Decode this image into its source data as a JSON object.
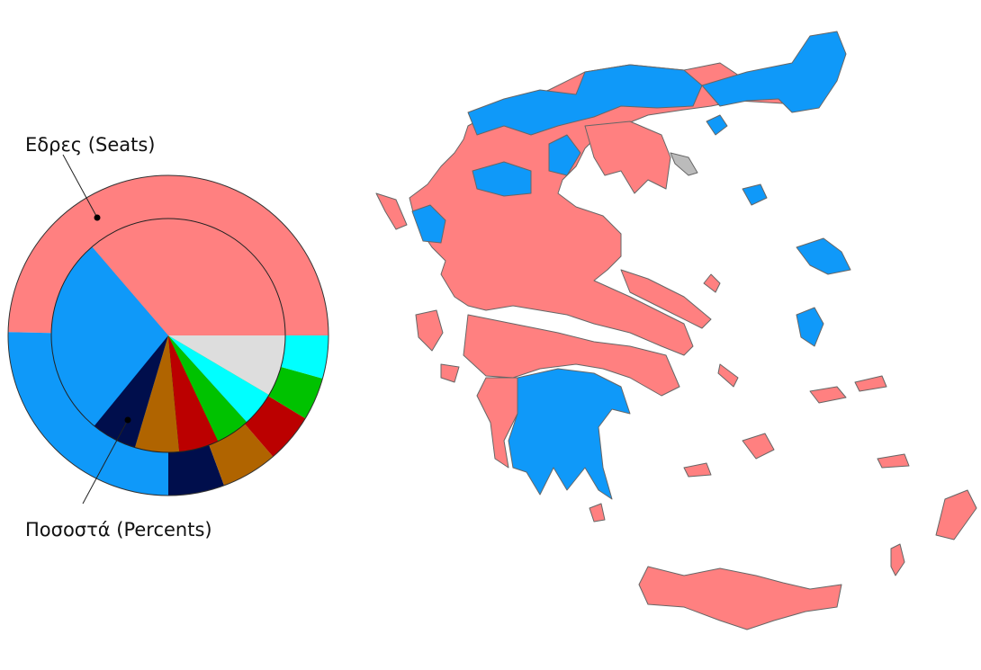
{
  "colors": {
    "syriza": "#ff8080",
    "nd": "#0f99f9",
    "gd": "#000e4c",
    "potami": "#b06400",
    "kke": "#bb0000",
    "pasok": "#00c200",
    "anel": "#00ffff",
    "other": "#dddddd",
    "disputed": "#bbbbbb"
  },
  "chart_data": {
    "type": "pie",
    "title": "",
    "rings": [
      {
        "name": "Εδρες (Seats)",
        "unit": "seats",
        "slices": [
          {
            "party": "syriza",
            "value": 149
          },
          {
            "party": "nd",
            "value": 76
          },
          {
            "party": "gd",
            "value": 17
          },
          {
            "party": "potami",
            "value": 17
          },
          {
            "party": "kke",
            "value": 15
          },
          {
            "party": "pasok",
            "value": 13
          },
          {
            "party": "anel",
            "value": 13
          }
        ]
      },
      {
        "name": "Ποσοστά (Percents)",
        "unit": "%",
        "slices": [
          {
            "party": "syriza",
            "value": 36.3
          },
          {
            "party": "nd",
            "value": 27.8
          },
          {
            "party": "gd",
            "value": 6.3
          },
          {
            "party": "potami",
            "value": 6.1
          },
          {
            "party": "kke",
            "value": 5.5
          },
          {
            "party": "pasok",
            "value": 4.7
          },
          {
            "party": "anel",
            "value": 4.8
          },
          {
            "party": "other",
            "value": 8.5
          }
        ]
      }
    ],
    "start": "east, counterclockwise"
  },
  "labels": {
    "seats": "Εδρες (Seats)",
    "percents": "Ποσοστά (Percents)"
  }
}
